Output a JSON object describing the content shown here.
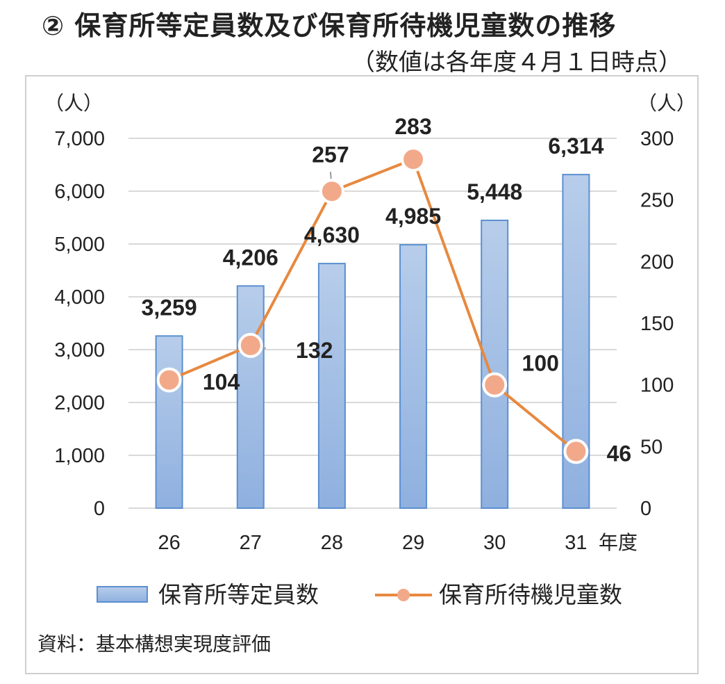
{
  "page": {
    "title": "② 保育所等定員数及び保育所待機児童数の推移",
    "subtitle": "（数値は各年度４月１日時点）",
    "source": "資料：基本構想実現度評価"
  },
  "chart_data": {
    "type": "bar+line",
    "categories": [
      "26",
      "27",
      "28",
      "29",
      "30",
      "31"
    ],
    "x_unit": "年度",
    "y_left": {
      "unit": "（人）",
      "ylim": [
        0,
        7000
      ],
      "ticks": [
        0,
        1000,
        2000,
        3000,
        4000,
        5000,
        6000,
        7000
      ]
    },
    "y_right": {
      "unit": "（人）",
      "ylim": [
        0,
        300
      ],
      "ticks": [
        0,
        50,
        100,
        150,
        200,
        250,
        300
      ]
    },
    "series": [
      {
        "name": "保育所等定員数",
        "type": "bar",
        "axis": "left",
        "values": [
          3259,
          4206,
          4630,
          4985,
          5448,
          6314
        ],
        "labels": [
          "3,259",
          "4,206",
          "4,630",
          "4,985",
          "5,448",
          "6,314"
        ]
      },
      {
        "name": "保育所待機児童数",
        "type": "line",
        "axis": "right",
        "values": [
          104,
          132,
          257,
          283,
          100,
          46
        ],
        "labels": [
          "104",
          "132",
          "257",
          "283",
          "100",
          "46"
        ]
      }
    ],
    "colors": {
      "bar_fill_top": "#b7cdea",
      "bar_fill_bottom": "#8fb0df",
      "bar_stroke": "#5b8fd0",
      "line": "#e7893f",
      "marker": "#f2a98a",
      "grid": "#d9d9d9"
    },
    "grid": true,
    "legend": "bottom"
  }
}
